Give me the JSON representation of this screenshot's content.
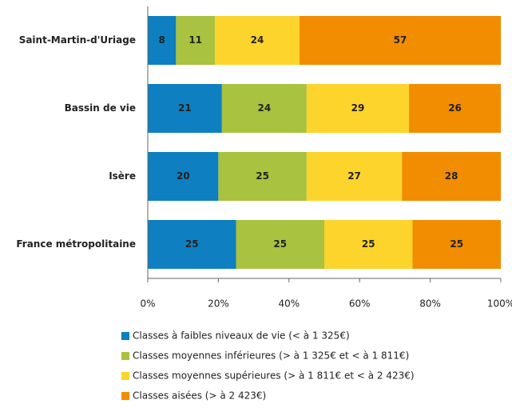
{
  "chart_data": {
    "type": "stacked_barh",
    "categories": [
      "Saint-Martin-d'Uriage",
      "Bassin de vie",
      "Isère",
      "France métropolitaine"
    ],
    "series": [
      {
        "name": "Classes à faibles niveaux de vie (< à 1 325€)",
        "color": "#0e7fc0",
        "values": [
          8,
          21,
          20,
          25
        ]
      },
      {
        "name": "Classes moyennes inférieures (> à 1 325€ et < à 1 811€)",
        "color": "#a9c23f",
        "values": [
          11,
          24,
          25,
          25
        ]
      },
      {
        "name": "Classes moyennes supérieures (> à 1 811€ et < à 2 423€)",
        "color": "#fdd42c",
        "values": [
          24,
          29,
          27,
          25
        ]
      },
      {
        "name": "Classes aisées (> à 2 423€)",
        "color": "#f28c00",
        "values": [
          57,
          26,
          28,
          25
        ]
      }
    ],
    "xlim": [
      0,
      100
    ],
    "xticks": [
      {
        "value": 0,
        "label": "0%"
      },
      {
        "value": 20,
        "label": "20%"
      },
      {
        "value": 40,
        "label": "40%"
      },
      {
        "value": 60,
        "label": "60%"
      },
      {
        "value": 80,
        "label": "80%"
      },
      {
        "value": 100,
        "label": "100%"
      }
    ]
  }
}
